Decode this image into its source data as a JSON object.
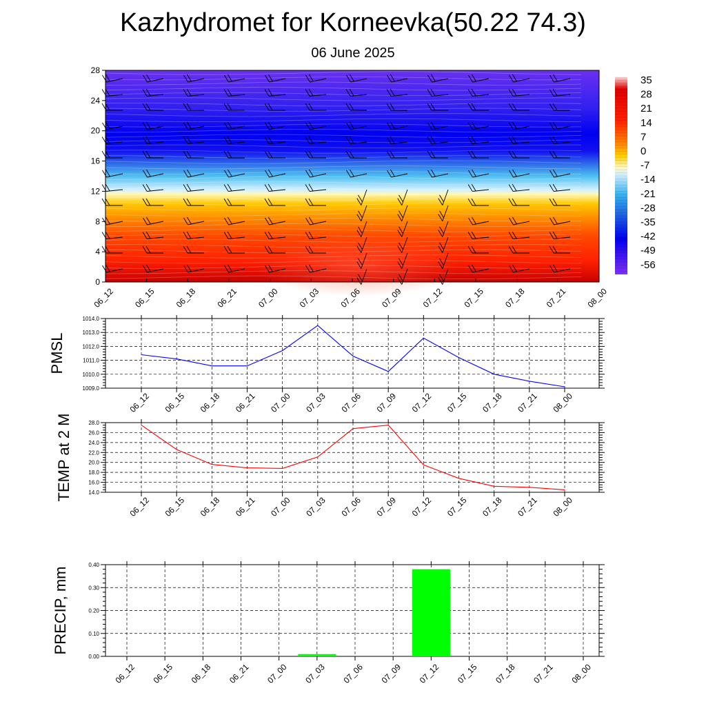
{
  "title": "Kazhydromet for Korneevka(50.22 74.3)",
  "subtitle": "06 June 2025",
  "chart_data": [
    {
      "type": "heatmap",
      "title": "",
      "y_ticks": [
        "0",
        "4",
        "8",
        "12",
        "16",
        "20",
        "24",
        "28"
      ],
      "ylim": [
        0,
        28
      ],
      "x_ticks": [
        "06_12",
        "06_15",
        "06_18",
        "06_21",
        "07_00",
        "07_03",
        "07_06",
        "07_09",
        "07_12",
        "07_15",
        "07_18",
        "07_21",
        "08_00"
      ],
      "colorbar_labels": [
        "35",
        "28",
        "21",
        "14",
        "7",
        "0",
        "-7",
        "-14",
        "-21",
        "-28",
        "-35",
        "-42",
        "-49",
        "-56"
      ],
      "wind_barbs": true
    },
    {
      "type": "line",
      "ylabel": "PMSL",
      "x": [
        "06_12",
        "06_15",
        "06_18",
        "06_21",
        "07_00",
        "07_03",
        "07_06",
        "07_09",
        "07_12",
        "07_15",
        "07_18",
        "07_21",
        "08_00"
      ],
      "values": [
        1011.4,
        1011.1,
        1010.6,
        1010.6,
        1011.7,
        1013.5,
        1011.3,
        1010.2,
        1012.6,
        1011.2,
        1010.0,
        1009.5,
        1009.1
      ],
      "ylim": [
        1009.0,
        1014.0
      ],
      "y_ticks": [
        "1009.0",
        "1010.0",
        "1011.0",
        "1012.0",
        "1013.0",
        "1014.0"
      ],
      "color": "#0000ff",
      "grid": true
    },
    {
      "type": "line",
      "ylabel": "TEMP at 2 M",
      "x": [
        "06_12",
        "06_15",
        "06_18",
        "06_21",
        "07_00",
        "07_03",
        "07_06",
        "07_09",
        "07_12",
        "07_15",
        "07_18",
        "07_21",
        "08_00"
      ],
      "values": [
        27.5,
        22.6,
        19.6,
        18.9,
        18.8,
        21.1,
        26.8,
        27.5,
        19.5,
        16.8,
        15.2,
        15.0,
        14.5
      ],
      "ylim": [
        14.0,
        28.0
      ],
      "y_ticks": [
        "14.0",
        "16.0",
        "18.0",
        "20.0",
        "22.0",
        "24.0",
        "26.0",
        "28.0"
      ],
      "color": "#ff0000",
      "grid": true
    },
    {
      "type": "bar",
      "ylabel": "PRECIP, mm",
      "categories": [
        "06_12",
        "06_15",
        "06_18",
        "06_21",
        "07_00",
        "07_03",
        "07_06",
        "07_09",
        "07_12",
        "07_15",
        "07_18",
        "07_21",
        "08_00"
      ],
      "values": [
        0,
        0,
        0,
        0,
        0,
        0.01,
        0,
        0,
        0.38,
        0,
        0,
        0,
        0
      ],
      "ylim": [
        0,
        0.4
      ],
      "y_ticks": [
        "0.00",
        "0.10",
        "0.20",
        "0.30",
        "0.40"
      ],
      "color": "#00ff00",
      "grid": true
    }
  ]
}
